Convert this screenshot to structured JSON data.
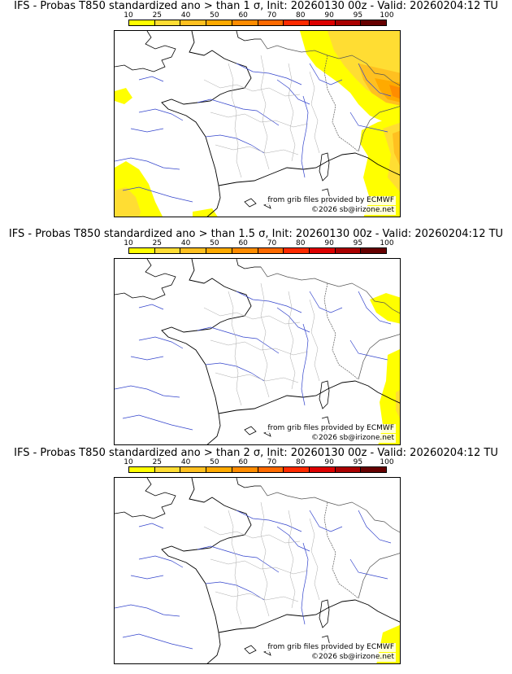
{
  "scale": {
    "labels": [
      "10",
      "25",
      "40",
      "50",
      "60",
      "70",
      "80",
      "90",
      "95",
      "100"
    ],
    "colors": [
      "#ffff00",
      "#ffdd33",
      "#ffc020",
      "#ffaa00",
      "#ff8c00",
      "#ff6a00",
      "#ff2a00",
      "#dd0000",
      "#aa0000",
      "#660000"
    ]
  },
  "panels": [
    {
      "title": "IFS - Probas T850  standardized ano > than 1 σ, Init: 20260130 00z - Valid: 20260204:12 TU",
      "source": "from grib files provided by ECMWF",
      "copyright": "©2026 sb@irizone.net"
    },
    {
      "title": "IFS - Probas T850  standardized ano > than 1.5 σ, Init: 20260130 00z - Valid: 20260204:12 TU",
      "source": "from grib files provided by ECMWF",
      "copyright": "©2026 sb@irizone.net"
    },
    {
      "title": "IFS - Probas T850  standardized ano > than 2 σ, Init: 20260130 00z - Valid: 20260204:12 TU",
      "source": "from grib files provided by ECMWF",
      "copyright": "©2026 sb@irizone.net"
    }
  ]
}
